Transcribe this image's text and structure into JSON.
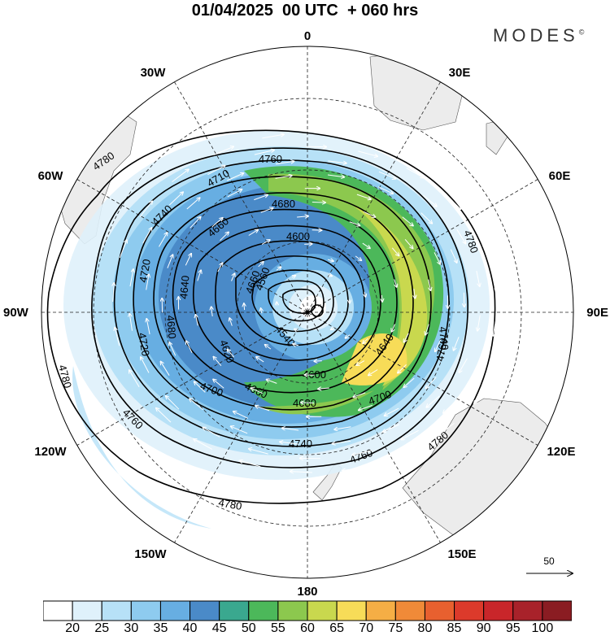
{
  "title": "01/04/2025  00 UTC  + 060 hrs",
  "brand": "MODES",
  "brand_mark": "©",
  "projection": "south polar stereographic",
  "longitude_labels": {
    "top": "0",
    "bottom": "180",
    "left": "90W",
    "right": "90E",
    "upper_left_30": "30W",
    "upper_right_30": "30E",
    "upper_left_60": "60W",
    "upper_right_60": "60E",
    "lower_left_120": "120W",
    "lower_right_120": "120E",
    "lower_left_150": "150W",
    "lower_right_150": "150E"
  },
  "contour_labels": {
    "c4780a": "4780",
    "c4780b": "4780",
    "c4780c": "4780",
    "c4780d": "4780",
    "c4780e": "4780",
    "c4760a": "4760",
    "c4760b": "4760",
    "c4760c": "4760",
    "c4760d": "4760",
    "c4740a": "4740",
    "c4740b": "4740",
    "c4740c": "4740",
    "c4720a": "4720",
    "c4720b": "4720",
    "c4710": "4710",
    "c4700a": "4700",
    "c4700b": "4700",
    "c4680a": "4680",
    "c4680b": "4680",
    "c4680c": "4680",
    "c4660a": "4660",
    "c4660b": "4660",
    "c4660c": "4660",
    "c4640a": "4640",
    "c4640b": "4640",
    "c4620a": "4620",
    "c4600a": "4600",
    "c4600b": "4600",
    "c4560": "4560",
    "c4540": "4540"
  },
  "reference_vector": "50",
  "colorbar": {
    "labels": [
      "20",
      "25",
      "30",
      "35",
      "40",
      "45",
      "50",
      "55",
      "60",
      "65",
      "70",
      "75",
      "80",
      "85",
      "90",
      "95",
      "100"
    ],
    "colors": [
      "#ffffff",
      "#dff1fb",
      "#b7e1f7",
      "#8ecbef",
      "#67aee2",
      "#4a8ac8",
      "#3aa88f",
      "#4cb85a",
      "#8cc84e",
      "#c9d84e",
      "#f7dc58",
      "#f5ae45",
      "#f08a38",
      "#e8602f",
      "#dc3a2b",
      "#c9262a",
      "#a8222a",
      "#8a1c22"
    ]
  }
}
